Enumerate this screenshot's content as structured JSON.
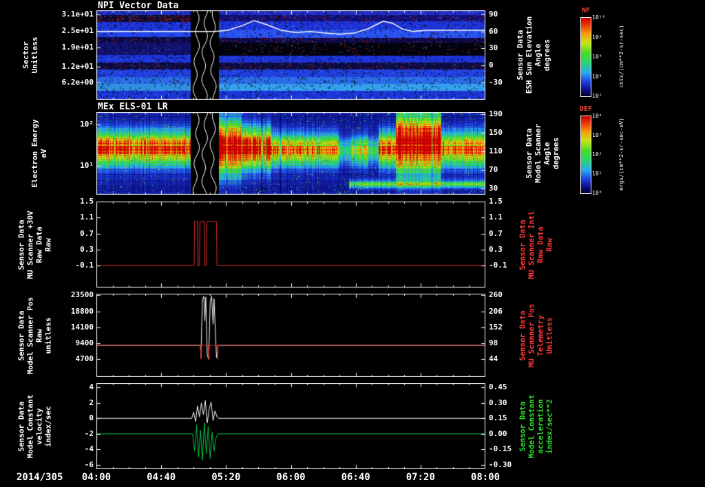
{
  "date_label": "2014/305",
  "time_axis": {
    "range": [
      4,
      8
    ],
    "ticks": [
      {
        "t": 4.0,
        "label": "04:00"
      },
      {
        "t": 4.6667,
        "label": "04:40"
      },
      {
        "t": 5.3333,
        "label": "05:20"
      },
      {
        "t": 6.0,
        "label": "06:00"
      },
      {
        "t": 6.6667,
        "label": "06:40"
      },
      {
        "t": 7.3333,
        "label": "07:20"
      },
      {
        "t": 8.0,
        "label": "08:00"
      }
    ]
  },
  "palette": [
    [
      0.0,
      "#000428"
    ],
    [
      0.07,
      "#0a0a78"
    ],
    [
      0.18,
      "#1e3cdc"
    ],
    [
      0.3,
      "#28aaf0"
    ],
    [
      0.42,
      "#28d278"
    ],
    [
      0.55,
      "#46dc28"
    ],
    [
      0.68,
      "#c8e614"
    ],
    [
      0.8,
      "#fa9b0a"
    ],
    [
      0.9,
      "#f03c0a"
    ],
    [
      1.0,
      "#c80000"
    ]
  ],
  "chart_data": [
    {
      "type": "heatmap",
      "title": "NPI Vector Data",
      "left_axis": {
        "label": "Sector\nUnitless",
        "range": [
          0,
          32.5
        ],
        "ticks": [
          {
            "v": 31,
            "label": "3.1e+01"
          },
          {
            "v": 25,
            "label": "2.5e+01"
          },
          {
            "v": 19,
            "label": "1.9e+01"
          },
          {
            "v": 12,
            "label": "1.2e+01"
          },
          {
            "v": 6.2,
            "label": "6.2e+00"
          }
        ]
      },
      "right_axis": {
        "label": "Sensor Data\nESH Sun Elevation\nAngle\ndegrees",
        "range": [
          -60,
          97
        ],
        "ticks": [
          {
            "v": 90,
            "label": "90"
          },
          {
            "v": 60,
            "label": "60"
          },
          {
            "v": 30,
            "label": "30"
          },
          {
            "v": 0,
            "label": "0"
          },
          {
            "v": -30,
            "label": "-30"
          }
        ]
      },
      "colorbar": {
        "title": "NF",
        "units": "cnts/(cm**2-sr-sec)",
        "ticks": [
          "10¹⁰",
          "10⁸",
          "10⁶",
          "10⁴",
          "10²"
        ]
      },
      "bands": [
        {
          "f0": 0.0,
          "f1": 0.055,
          "color": "#2030c8"
        },
        {
          "f0": 0.055,
          "f1": 0.125,
          "color": "#101080",
          "speckle": "red"
        },
        {
          "f0": 0.125,
          "f1": 0.215,
          "color": "#1e34d8"
        },
        {
          "f0": 0.215,
          "f1": 0.3,
          "color": "#2244e8"
        },
        {
          "f0": 0.3,
          "f1": 0.36,
          "color": "#0a0a50",
          "speckle": "red"
        },
        {
          "f0": 0.36,
          "f1": 0.5,
          "color": "#121270"
        },
        {
          "f0": 0.5,
          "f1": 0.585,
          "color": "#1c35d8"
        },
        {
          "f0": 0.585,
          "f1": 0.665,
          "color": "#0c0c48",
          "speckle": "red"
        },
        {
          "f0": 0.665,
          "f1": 0.745,
          "color": "#2040e0"
        },
        {
          "f0": 0.745,
          "f1": 0.825,
          "color": "#2a6ce8"
        },
        {
          "f0": 0.825,
          "f1": 0.9,
          "color": "#2f8fe0"
        },
        {
          "f0": 0.9,
          "f1": 1.0,
          "color": "#1c35d8"
        }
      ],
      "region_overrides": [
        {
          "t0": 5.26,
          "t1": 8.0,
          "f0": 0.36,
          "f1": 0.5,
          "color": "#030310",
          "speckle": "red"
        },
        {
          "t0": 5.26,
          "t1": 8.0,
          "f0": 0.215,
          "f1": 0.3,
          "color": "#2a52f0"
        },
        {
          "t0": 5.26,
          "t1": 8.0,
          "f0": 0.825,
          "f1": 0.9,
          "color": "#35a0ee"
        },
        {
          "t0": 4.0,
          "t1": 4.97,
          "f0": 0.055,
          "f1": 0.125,
          "color": "#0a0a38",
          "speckle": "red"
        }
      ],
      "data_gaps": [
        [
          4.97,
          5.26
        ]
      ],
      "series": [
        {
          "name": "sun-elevation-angle",
          "color": "#ffffff",
          "axis": "right",
          "width": 1.5,
          "points": [
            [
              4,
              60
            ],
            [
              5.22,
              60
            ],
            [
              5.35,
              62
            ],
            [
              5.5,
              70
            ],
            [
              5.62,
              79
            ],
            [
              5.75,
              72
            ],
            [
              5.9,
              62
            ],
            [
              6.05,
              58
            ],
            [
              6.2,
              60
            ],
            [
              6.35,
              57
            ],
            [
              6.5,
              55
            ],
            [
              6.65,
              57
            ],
            [
              6.8,
              65
            ],
            [
              6.95,
              78
            ],
            [
              7.05,
              74
            ],
            [
              7.15,
              64
            ],
            [
              7.25,
              60
            ],
            [
              7.4,
              62
            ],
            [
              8,
              62
            ]
          ]
        }
      ]
    },
    {
      "type": "heatmap",
      "title": "MEx ELS-01 LR",
      "left_axis": {
        "label": "Electron Energy\neV",
        "scale": "log",
        "range": [
          2,
          200
        ],
        "ticks": [
          {
            "v": 100,
            "label": "10²"
          },
          {
            "v": 10,
            "label": "10¹"
          }
        ]
      },
      "right_axis": {
        "label": "Sensor Data\nModel Scanner\nAngle\ndegrees",
        "range": [
          17,
          195
        ],
        "ticks": [
          {
            "v": 190,
            "label": "190"
          },
          {
            "v": 150,
            "label": "150"
          },
          {
            "v": 110,
            "label": "110"
          },
          {
            "v": 70,
            "label": "70"
          },
          {
            "v": 30,
            "label": "30"
          }
        ]
      },
      "colorbar": {
        "title": "DEF",
        "units": "ergs/(cm**2-sr-sec-eV)",
        "ticks": [
          "10⁴",
          "10³",
          "10²",
          "10¹",
          "10⁰"
        ]
      },
      "band_segments": [
        {
          "t0": 4.0,
          "t1": 4.97,
          "amp": 0.82,
          "center": 1.42,
          "sigma": 0.26
        },
        {
          "t0": 5.26,
          "t1": 5.5,
          "amp": 1.0,
          "center": 1.45,
          "sigma": 0.4
        },
        {
          "t0": 5.5,
          "t1": 5.8,
          "amp": 0.95,
          "center": 1.42,
          "sigma": 0.31
        },
        {
          "t0": 5.8,
          "t1": 6.5,
          "amp": 0.72,
          "center": 1.38,
          "sigma": 0.24
        },
        {
          "t0": 6.5,
          "t1": 6.62,
          "amp": 0.32,
          "center": 1.36,
          "sigma": 0.2
        },
        {
          "t0": 6.62,
          "t1": 6.8,
          "amp": 0.55,
          "center": 1.36,
          "sigma": 0.22
        },
        {
          "t0": 6.8,
          "t1": 6.9,
          "amp": 0.35,
          "center": 1.36,
          "sigma": 0.2
        },
        {
          "t0": 6.9,
          "t1": 7.08,
          "amp": 0.8,
          "center": 1.4,
          "sigma": 0.26
        },
        {
          "t0": 7.08,
          "t1": 7.55,
          "amp": 1.0,
          "center": 1.55,
          "sigma": 0.46
        },
        {
          "t0": 7.55,
          "t1": 8.0,
          "amp": 0.75,
          "center": 1.4,
          "sigma": 0.26
        }
      ],
      "low_band": {
        "t0": 6.6,
        "t1": 8.0,
        "amp": 0.42,
        "center": 0.55,
        "sigma": 0.06
      },
      "data_gaps": [
        [
          4.97,
          5.26
        ]
      ],
      "series": []
    },
    {
      "type": "line",
      "left_axis": {
        "label": "Sensor Data\nMU Scanner +30V\nRaw Data\nRaw",
        "range": [
          -0.65,
          1.5
        ],
        "ticks": [
          {
            "v": 1.5,
            "label": "1.5"
          },
          {
            "v": 1.1,
            "label": "1.1"
          },
          {
            "v": 0.7,
            "label": "0.7"
          },
          {
            "v": 0.3,
            "label": "0.3"
          },
          {
            "v": -0.1,
            "label": "-0.1"
          }
        ]
      },
      "right_axis": {
        "label": "Sensor Data\nMU Scanner Intl\nRaw Data\nRaw",
        "label_color": "#ff3838",
        "range": [
          -0.65,
          1.5
        ],
        "ticks": [
          {
            "v": 1.5,
            "label": "1.5"
          },
          {
            "v": 1.1,
            "label": "1.1"
          },
          {
            "v": 0.7,
            "label": "0.7"
          },
          {
            "v": 0.3,
            "label": "0.3"
          },
          {
            "v": -0.1,
            "label": "-0.1"
          }
        ]
      },
      "series": [
        {
          "name": "mu-scanner-30v-raw",
          "color": "#e03030",
          "axis": "left",
          "width": 1,
          "points": [
            [
              4,
              -0.1
            ],
            [
              5.005,
              -0.1
            ],
            [
              5.01,
              1
            ],
            [
              5.04,
              1
            ],
            [
              5.045,
              -0.1
            ],
            [
              5.06,
              -0.1
            ],
            [
              5.065,
              1
            ],
            [
              5.11,
              1
            ],
            [
              5.115,
              -0.1
            ],
            [
              5.13,
              -0.1
            ],
            [
              5.135,
              1
            ],
            [
              5.235,
              1
            ],
            [
              5.24,
              -0.1
            ],
            [
              8,
              -0.1
            ]
          ]
        }
      ]
    },
    {
      "type": "line",
      "left_axis": {
        "label": "Sensor Data\nModel Scanner Pos\nRaw\nunitless",
        "range": [
          -500,
          24000
        ],
        "ticks": [
          {
            "v": 23500,
            "label": "23500"
          },
          {
            "v": 18800,
            "label": "18800"
          },
          {
            "v": 14100,
            "label": "14100"
          },
          {
            "v": 9400,
            "label": "9400"
          },
          {
            "v": 4700,
            "label": "4700"
          }
        ]
      },
      "right_axis": {
        "label": "Sensor Data\nMU Scanner Pos\nTelemetry\nUnitless",
        "label_color": "#ff3838",
        "range": [
          -16.5,
          265.8
        ],
        "ticks": [
          {
            "v": 260,
            "label": "260"
          },
          {
            "v": 206,
            "label": "206"
          },
          {
            "v": 152,
            "label": "152"
          },
          {
            "v": 98,
            "label": "98"
          },
          {
            "v": 44,
            "label": "44"
          }
        ]
      },
      "series": [
        {
          "name": "model-scanner-pos-raw",
          "color": "#ffffff",
          "axis": "left",
          "width": 1,
          "points": [
            [
              4,
              8800
            ],
            [
              5.07,
              8800
            ],
            [
              5.075,
              5200
            ],
            [
              5.09,
              22000
            ],
            [
              5.105,
              23300
            ],
            [
              5.115,
              16000
            ],
            [
              5.125,
              23000
            ],
            [
              5.14,
              6000
            ],
            [
              5.155,
              4700
            ],
            [
              5.17,
              21500
            ],
            [
              5.185,
              23300
            ],
            [
              5.2,
              15000
            ],
            [
              5.21,
              22500
            ],
            [
              5.235,
              5200
            ],
            [
              5.25,
              8800
            ],
            [
              8,
              8800
            ]
          ]
        },
        {
          "name": "mu-scanner-pos-telemetry",
          "color": "#e03030",
          "axis": "left",
          "width": 1,
          "points": [
            [
              4,
              8800
            ],
            [
              5.07,
              8800
            ],
            [
              5.075,
              4700
            ],
            [
              5.08,
              8800
            ],
            [
              5.15,
              8800
            ],
            [
              5.155,
              4700
            ],
            [
              5.16,
              8800
            ],
            [
              5.24,
              8800
            ],
            [
              5.245,
              4700
            ],
            [
              5.25,
              8800
            ],
            [
              8,
              8800
            ]
          ]
        }
      ]
    },
    {
      "type": "line",
      "left_axis": {
        "label": "Sensor Data\nModel Constant\nvelocity\nindex/sec",
        "range": [
          -6.55,
          4.55
        ],
        "ticks": [
          {
            "v": 4,
            "label": "4"
          },
          {
            "v": 2,
            "label": "2"
          },
          {
            "v": 0,
            "label": "0"
          },
          {
            "v": -2,
            "label": "-2"
          },
          {
            "v": -4,
            "label": "-4"
          },
          {
            "v": -6,
            "label": "-6"
          }
        ]
      },
      "right_axis": {
        "label": "Sensor Data\nModel Constant\nacceleration\nindex/sec**2",
        "label_color": "#30dd30",
        "range": [
          -0.34,
          0.49
        ],
        "ticks": [
          {
            "v": 0.45,
            "label": "0.45"
          },
          {
            "v": 0.3,
            "label": "0.30"
          },
          {
            "v": 0.15,
            "label": "0.15"
          },
          {
            "v": 0.0,
            "label": "0.00"
          },
          {
            "v": -0.15,
            "label": "-0.15"
          },
          {
            "v": -0.3,
            "label": "-0.30"
          }
        ]
      },
      "series": [
        {
          "name": "model-constant-velocity",
          "color": "#ffffff",
          "axis": "left",
          "width": 1,
          "points": [
            [
              4,
              0
            ],
            [
              4.98,
              0
            ],
            [
              5.0,
              0.8
            ],
            [
              5.02,
              -0.4
            ],
            [
              5.04,
              1.6
            ],
            [
              5.06,
              0.2
            ],
            [
              5.08,
              2.0
            ],
            [
              5.1,
              0.5
            ],
            [
              5.12,
              2.3
            ],
            [
              5.14,
              -0.6
            ],
            [
              5.16,
              1.2
            ],
            [
              5.18,
              2.1
            ],
            [
              5.2,
              -0.3
            ],
            [
              5.22,
              1.0
            ],
            [
              5.24,
              0.2
            ],
            [
              5.26,
              0
            ],
            [
              8,
              0
            ]
          ]
        },
        {
          "name": "model-constant-acceleration",
          "color": "#00cc44",
          "axis": "left",
          "width": 1,
          "points": [
            [
              4,
              -2
            ],
            [
              4.99,
              -2
            ],
            [
              5.01,
              -4.2
            ],
            [
              5.03,
              -0.8
            ],
            [
              5.05,
              -5.0
            ],
            [
              5.07,
              -1.5
            ],
            [
              5.09,
              -5.4
            ],
            [
              5.11,
              -0.6
            ],
            [
              5.13,
              -4.6
            ],
            [
              5.15,
              -1.0
            ],
            [
              5.17,
              -5.2
            ],
            [
              5.19,
              -1.8
            ],
            [
              5.21,
              -4.2
            ],
            [
              5.23,
              -2.5
            ],
            [
              5.25,
              -2
            ],
            [
              8,
              -2
            ]
          ]
        }
      ]
    }
  ]
}
